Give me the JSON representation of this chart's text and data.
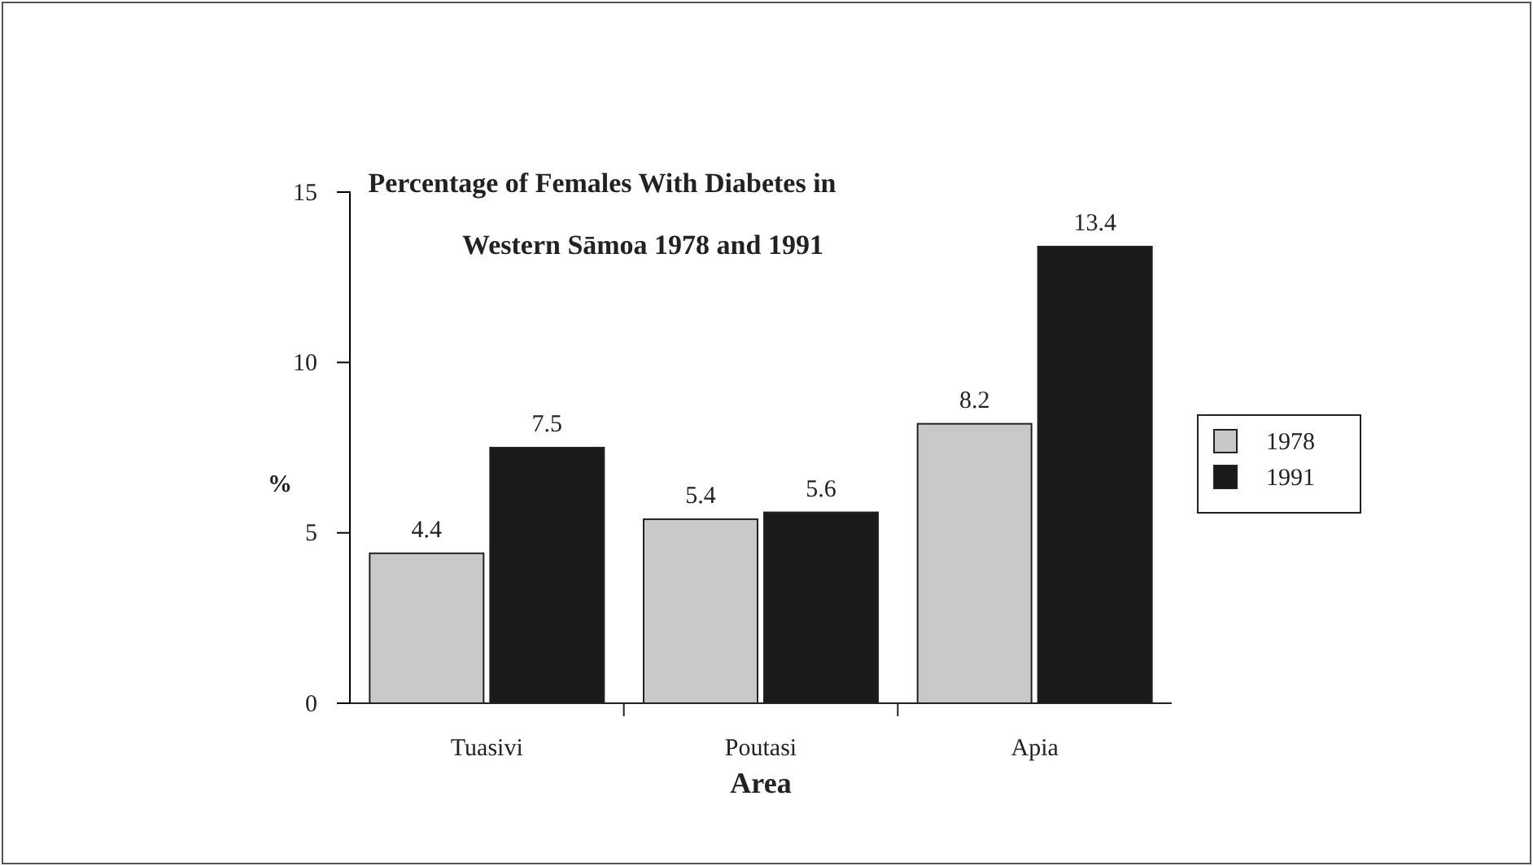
{
  "chart_data": {
    "type": "bar",
    "title": "Percentage of Females With Diabetes in Western Sāmoa 1978 and 1991",
    "xlabel": "Area",
    "ylabel": "%",
    "categories": [
      "Tuasivi",
      "Poutasi",
      "Apia"
    ],
    "series": [
      {
        "name": "1978",
        "color": "#c8c8c8",
        "values": [
          4.4,
          5.4,
          8.2
        ]
      },
      {
        "name": "1991",
        "color": "#1a1a1a",
        "values": [
          7.5,
          5.6,
          13.4
        ]
      }
    ],
    "ylim": [
      0,
      15
    ],
    "yticks": [
      0,
      5,
      10,
      15
    ],
    "grid": false,
    "legend": "right",
    "data_labels": true
  }
}
